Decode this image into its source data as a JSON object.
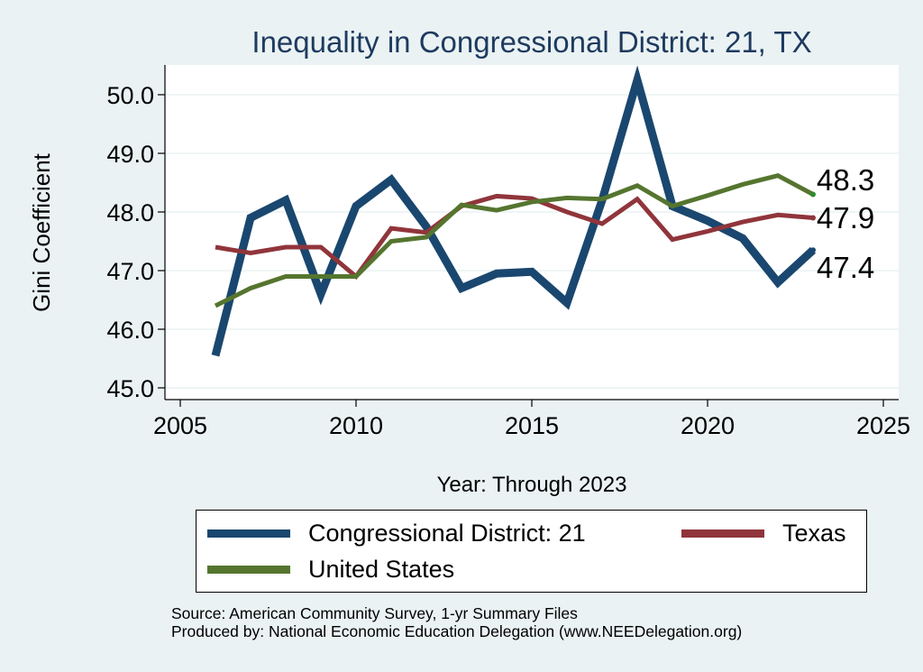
{
  "chart_data": {
    "type": "line",
    "title": "Inequality in Congressional District:  21, TX",
    "xlabel": "Year: Through 2023",
    "ylabel": "Gini Coefficient",
    "xlim": [
      2005,
      2025
    ],
    "ylim": [
      45.0,
      50.3
    ],
    "xticks": [
      2005,
      2010,
      2015,
      2020,
      2025
    ],
    "yticks": [
      45.0,
      46.0,
      47.0,
      48.0,
      49.0,
      50.0
    ],
    "ytick_labels": [
      "45.0",
      "46.0",
      "47.0",
      "48.0",
      "49.0",
      "50.0"
    ],
    "grid": true,
    "legend_position": "bottom",
    "x": [
      2006,
      2007,
      2008,
      2009,
      2010,
      2011,
      2012,
      2013,
      2014,
      2015,
      2016,
      2017,
      2018,
      2019,
      2020,
      2021,
      2022,
      2023
    ],
    "series": [
      {
        "name": "Congressional District:  21",
        "color": "#1a476f",
        "values": [
          45.55,
          47.9,
          48.2,
          46.6,
          48.1,
          48.55,
          47.75,
          46.7,
          46.95,
          46.98,
          46.45,
          48.2,
          50.25,
          48.1,
          47.85,
          47.55,
          46.8,
          47.35
        ],
        "end_label": "47.4"
      },
      {
        "name": "Texas",
        "color": "#90353b",
        "values": [
          47.4,
          47.3,
          47.4,
          47.4,
          46.9,
          47.72,
          47.65,
          48.1,
          48.27,
          48.23,
          48.0,
          47.8,
          48.22,
          47.53,
          47.67,
          47.83,
          47.95,
          47.9
        ],
        "end_label": "47.9"
      },
      {
        "name": "United States",
        "color": "#55752f",
        "values": [
          46.4,
          46.7,
          46.9,
          46.9,
          46.9,
          47.5,
          47.57,
          48.12,
          48.03,
          48.17,
          48.24,
          48.22,
          48.45,
          48.1,
          48.28,
          48.47,
          48.62,
          48.3
        ],
        "end_label": "48.3"
      }
    ]
  },
  "legend": {
    "items": [
      {
        "label": "Congressional District:  21",
        "color": "#1a476f"
      },
      {
        "label": "Texas",
        "color": "#90353b"
      },
      {
        "label": "United States",
        "color": "#55752f"
      }
    ]
  },
  "source": {
    "line1": "Source: American Community Survey, 1-yr Summary Files",
    "line2": "Produced by: National Economic Education Delegation (www.NEEDelegation.org)"
  }
}
